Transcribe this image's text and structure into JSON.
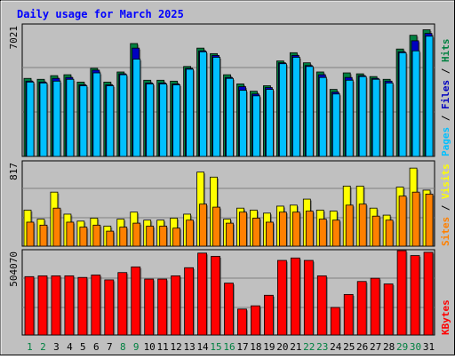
{
  "title": "Daily usage for March 2025",
  "colors": {
    "background": "#C0C0C0",
    "title": "#0000FF",
    "hits": "#008040",
    "files": "#0000C0",
    "pages": "#00C0FF",
    "visits": "#FFFF00",
    "sites": "#FF8000",
    "kbytes": "#FF0000",
    "weekend_day": "#008040",
    "weekday": "#000000"
  },
  "chart_data": [
    {
      "type": "bar",
      "panel": "hits-files-pages",
      "scale_label": "7021",
      "ymax": 7021,
      "grid": true,
      "categories": [
        "1",
        "2",
        "3",
        "4",
        "5",
        "6",
        "7",
        "8",
        "9",
        "10",
        "11",
        "12",
        "13",
        "14",
        "15",
        "16",
        "17",
        "18",
        "19",
        "20",
        "21",
        "22",
        "23",
        "24",
        "25",
        "26",
        "27",
        "28",
        "29",
        "30",
        "31"
      ],
      "series_labels": [
        "Pages",
        "Files",
        "Hits"
      ],
      "series": [
        {
          "name": "Hits",
          "values": [
            4250,
            4200,
            4400,
            4450,
            4050,
            4800,
            4050,
            4600,
            6150,
            4150,
            4150,
            4100,
            4900,
            5900,
            5600,
            4450,
            3950,
            3550,
            3850,
            5200,
            5650,
            5100,
            4600,
            3650,
            4550,
            4500,
            4350,
            4200,
            5850,
            6600,
            6900
          ]
        },
        {
          "name": "Files",
          "values": [
            4100,
            4050,
            4250,
            4300,
            3900,
            4700,
            3900,
            4500,
            5900,
            4000,
            4000,
            3950,
            4800,
            5750,
            5500,
            4300,
            3800,
            3400,
            3750,
            5100,
            5500,
            4950,
            4450,
            3500,
            4300,
            4400,
            4250,
            4100,
            5700,
            6300,
            6700
          ]
        },
        {
          "name": "Pages",
          "values": [
            4050,
            4000,
            4100,
            4200,
            3850,
            4550,
            3850,
            4450,
            5300,
            3950,
            3950,
            3900,
            4750,
            5700,
            5400,
            4250,
            3600,
            3300,
            3650,
            5050,
            5400,
            4900,
            4300,
            3400,
            4150,
            4350,
            4200,
            4000,
            5650,
            5750,
            6550
          ]
        }
      ]
    },
    {
      "type": "bar",
      "panel": "visits-sites",
      "scale_label": "817",
      "ymax": 817,
      "grid": true,
      "categories": [
        "1",
        "2",
        "3",
        "4",
        "5",
        "6",
        "7",
        "8",
        "9",
        "10",
        "11",
        "12",
        "13",
        "14",
        "15",
        "16",
        "17",
        "18",
        "19",
        "20",
        "21",
        "22",
        "23",
        "24",
        "25",
        "26",
        "27",
        "28",
        "29",
        "30",
        "31"
      ],
      "series_labels": [
        "Sites",
        "Visits"
      ],
      "series": [
        {
          "name": "Visits",
          "values": [
            360,
            270,
            540,
            320,
            250,
            280,
            200,
            270,
            340,
            260,
            260,
            280,
            320,
            740,
            690,
            270,
            380,
            360,
            330,
            400,
            410,
            470,
            360,
            350,
            600,
            600,
            380,
            310,
            590,
            780,
            560
          ]
        },
        {
          "name": "Sites",
          "values": [
            240,
            210,
            380,
            240,
            190,
            210,
            150,
            190,
            230,
            200,
            200,
            180,
            260,
            420,
            390,
            230,
            340,
            280,
            240,
            340,
            340,
            350,
            270,
            260,
            410,
            420,
            300,
            260,
            500,
            540,
            520
          ]
        }
      ]
    },
    {
      "type": "bar",
      "panel": "kbytes",
      "scale_label": "504070",
      "ymax": 504070,
      "grid": true,
      "categories": [
        "1",
        "2",
        "3",
        "4",
        "5",
        "6",
        "7",
        "8",
        "9",
        "10",
        "11",
        "12",
        "13",
        "14",
        "15",
        "16",
        "17",
        "18",
        "19",
        "20",
        "21",
        "22",
        "23",
        "24",
        "25",
        "26",
        "27",
        "28",
        "29",
        "30",
        "31"
      ],
      "series_labels": [
        "KBytes"
      ],
      "series": [
        {
          "name": "KBytes",
          "values": [
            360000,
            365000,
            365000,
            365000,
            355000,
            370000,
            340000,
            385000,
            420000,
            345000,
            345000,
            365000,
            415000,
            505000,
            485000,
            320000,
            160000,
            180000,
            245000,
            460000,
            475000,
            460000,
            365000,
            170000,
            250000,
            330000,
            350000,
            315000,
            520000,
            490000,
            510000
          ]
        }
      ]
    }
  ],
  "day_label_colors": [
    "weekend",
    "weekend",
    "weekday",
    "weekday",
    "weekday",
    "weekday",
    "weekday",
    "weekend",
    "weekend",
    "weekday",
    "weekday",
    "weekday",
    "weekday",
    "weekday",
    "weekend",
    "weekend",
    "weekday",
    "weekday",
    "weekday",
    "weekday",
    "weekday",
    "weekend",
    "weekend",
    "weekday",
    "weekday",
    "weekday",
    "weekday",
    "weekday",
    "weekend",
    "weekend",
    "weekday"
  ]
}
